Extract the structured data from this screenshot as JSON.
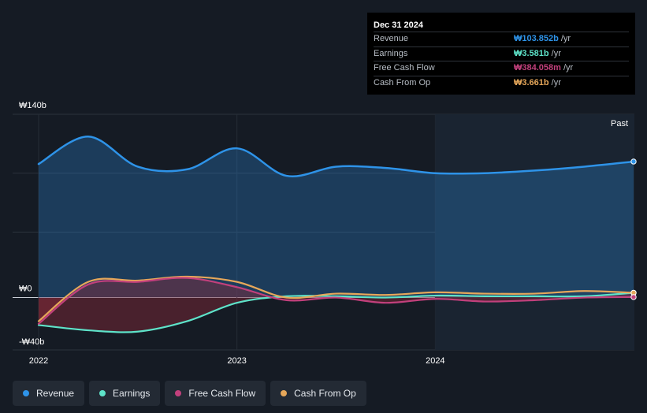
{
  "colors": {
    "revenue": "#2e93e8",
    "earnings": "#5ee3c9",
    "free_cash_flow": "#c2407c",
    "cash_from_op": "#e6a75a"
  },
  "tooltip": {
    "date": "Dec 31 2024",
    "rows": [
      {
        "label": "Revenue",
        "value": "₩103.852b",
        "unit": "/yr",
        "color": "#2e93e8"
      },
      {
        "label": "Earnings",
        "value": "₩3.581b",
        "unit": "/yr",
        "color": "#5ee3c9"
      },
      {
        "label": "Free Cash Flow",
        "value": "₩384.058m",
        "unit": "/yr",
        "color": "#c2407c"
      },
      {
        "label": "Cash From Op",
        "value": "₩3.661b",
        "unit": "/yr",
        "color": "#e6a75a"
      }
    ]
  },
  "legend": [
    {
      "label": "Revenue",
      "color": "#2e93e8"
    },
    {
      "label": "Earnings",
      "color": "#5ee3c9"
    },
    {
      "label": "Free Cash Flow",
      "color": "#c2407c"
    },
    {
      "label": "Cash From Op",
      "color": "#e6a75a"
    }
  ],
  "chart_data": {
    "type": "area",
    "title": "",
    "xlabel": "",
    "ylabel": "",
    "ylim": [
      -40,
      140
    ],
    "xlim": [
      2022.0,
      2025.0
    ],
    "y_tick_labels": [
      {
        "value": 140,
        "label": "₩140b"
      },
      {
        "value": 0,
        "label": "₩0"
      },
      {
        "value": -40,
        "label": "-₩40b"
      }
    ],
    "x_tick_labels": [
      {
        "value": 2022,
        "label": "2022"
      },
      {
        "value": 2023,
        "label": "2023"
      },
      {
        "value": 2024,
        "label": "2024"
      }
    ],
    "past_label": "Past",
    "forecast_region_start": 2024.0,
    "series": [
      {
        "name": "Revenue",
        "key": "revenue",
        "fill": true,
        "x": [
          2022.0,
          2022.25,
          2022.5,
          2022.75,
          2023.0,
          2023.25,
          2023.5,
          2023.75,
          2024.0,
          2024.25,
          2024.5,
          2024.75,
          2025.0
        ],
        "values": [
          102,
          123,
          100,
          98,
          114,
          93,
          100,
          99,
          95,
          95,
          97,
          100,
          103.9
        ]
      },
      {
        "name": "Earnings",
        "key": "earnings",
        "fill": true,
        "x": [
          2022.0,
          2022.25,
          2022.5,
          2022.75,
          2023.0,
          2023.25,
          2023.5,
          2023.75,
          2024.0,
          2024.25,
          2024.5,
          2024.75,
          2025.0
        ],
        "values": [
          -21,
          -25,
          -26,
          -18,
          -4,
          1,
          1,
          0,
          1.5,
          1,
          1,
          1,
          3.6
        ]
      },
      {
        "name": "Free Cash Flow",
        "key": "free_cash_flow",
        "fill": true,
        "x": [
          2022.0,
          2022.25,
          2022.5,
          2022.75,
          2023.0,
          2023.25,
          2023.5,
          2023.75,
          2024.0,
          2024.25,
          2024.5,
          2024.75,
          2025.0
        ],
        "values": [
          -20,
          10,
          12,
          15,
          8,
          -2,
          0,
          -4,
          -1,
          -3,
          -2,
          0,
          0.4
        ]
      },
      {
        "name": "Cash From Op",
        "key": "cash_from_op",
        "fill": false,
        "x": [
          2022.0,
          2022.25,
          2022.5,
          2022.75,
          2023.0,
          2023.25,
          2023.5,
          2023.75,
          2024.0,
          2024.25,
          2024.5,
          2024.75,
          2025.0
        ],
        "values": [
          -18,
          12,
          13,
          16,
          12,
          0,
          3,
          2,
          4,
          3,
          3,
          5,
          3.7
        ]
      }
    ]
  }
}
